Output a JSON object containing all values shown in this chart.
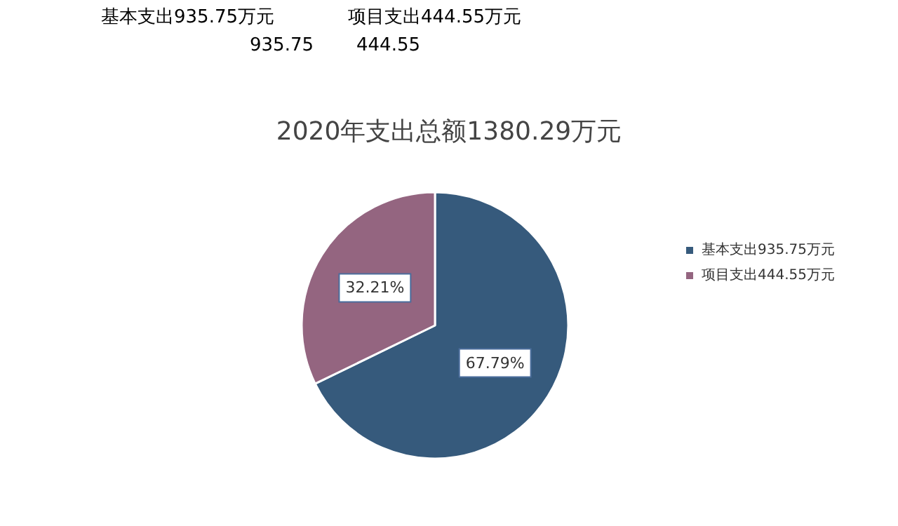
{
  "chart_data": {
    "type": "pie",
    "title": "2020年支出总额1380.29万元",
    "categories": [
      "基本支出935.75万元",
      "项目支出444.55万元"
    ],
    "values": [
      67.79,
      32.21
    ],
    "colors": [
      "#365a7c",
      "#946580"
    ],
    "value_labels": [
      "67.79%",
      "32.21%"
    ],
    "legend": "right",
    "annotations": [
      "基本支出935.75万元",
      "项目支出444.55万元",
      "935.75",
      "444.55"
    ]
  }
}
